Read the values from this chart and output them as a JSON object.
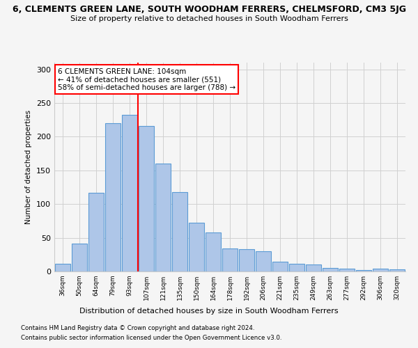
{
  "title": "6, CLEMENTS GREEN LANE, SOUTH WOODHAM FERRERS, CHELMSFORD, CM3 5JG",
  "subtitle": "Size of property relative to detached houses in South Woodham Ferrers",
  "xlabel": "Distribution of detached houses by size in South Woodham Ferrers",
  "ylabel": "Number of detached properties",
  "footer1": "Contains HM Land Registry data © Crown copyright and database right 2024.",
  "footer2": "Contains public sector information licensed under the Open Government Licence v3.0.",
  "annotation_line1": "6 CLEMENTS GREEN LANE: 104sqm",
  "annotation_line2": "← 41% of detached houses are smaller (551)",
  "annotation_line3": "58% of semi-detached houses are larger (788) →",
  "bar_labels": [
    "36sqm",
    "50sqm",
    "64sqm",
    "79sqm",
    "93sqm",
    "107sqm",
    "121sqm",
    "135sqm",
    "150sqm",
    "164sqm",
    "178sqm",
    "192sqm",
    "206sqm",
    "221sqm",
    "235sqm",
    "249sqm",
    "263sqm",
    "277sqm",
    "292sqm",
    "306sqm",
    "320sqm"
  ],
  "bar_values": [
    11,
    41,
    117,
    220,
    233,
    216,
    160,
    118,
    72,
    58,
    34,
    33,
    30,
    14,
    11,
    10,
    5,
    4,
    2,
    4,
    3
  ],
  "bar_color": "#aec6e8",
  "bar_edge_color": "#5b9bd5",
  "grid_color": "#d0d0d0",
  "bg_color": "#f5f5f5",
  "vline_color": "red",
  "annotation_box_color": "white",
  "annotation_box_edge": "red",
  "ylim": [
    0,
    310
  ],
  "yticks": [
    0,
    50,
    100,
    150,
    200,
    250,
    300
  ],
  "vline_pos": 4.5
}
